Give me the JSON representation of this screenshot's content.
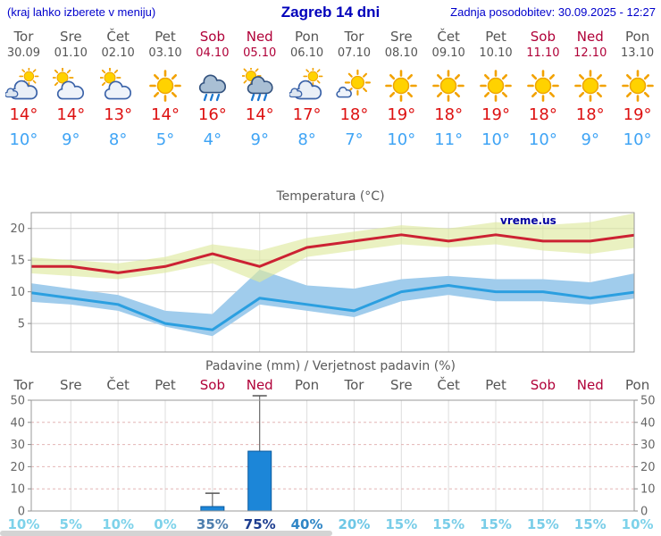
{
  "header": {
    "left_note": "(kraj lahko izberete v meniju)",
    "title": "Zagreb 14 dni",
    "updated": "Zadnja posodobitev: 30.09.2025 - 12:27"
  },
  "watermark": "vreme.us",
  "colors": {
    "header_text": "#0000cc",
    "tmax_text": "#dd1111",
    "tmin_text": "#3fa4f5",
    "weekend_text": "#b00038",
    "tmax_line": "#cc2233",
    "tmin_line": "#2b9fe0",
    "tmax_band": "#dfe9a0",
    "tmin_band": "#a0ccec",
    "precip_bar": "#1c86d8"
  },
  "days": [
    {
      "name": "Tor",
      "date": "30.09",
      "weekend": false,
      "icon": "cloudy",
      "tmax": 14,
      "tmin": 10,
      "prob": 10,
      "prob_color": "#7dd2ea"
    },
    {
      "name": "Sre",
      "date": "01.10",
      "weekend": false,
      "icon": "partly-sunny",
      "tmax": 14,
      "tmin": 9,
      "prob": 5,
      "prob_color": "#7dd2ea"
    },
    {
      "name": "Čet",
      "date": "02.10",
      "weekend": false,
      "icon": "partly-sunny",
      "tmax": 13,
      "tmin": 8,
      "prob": 10,
      "prob_color": "#7dd2ea"
    },
    {
      "name": "Pet",
      "date": "03.10",
      "weekend": false,
      "icon": "sun",
      "tmax": 14,
      "tmin": 5,
      "prob": 0,
      "prob_color": "#7dd2ea"
    },
    {
      "name": "Sob",
      "date": "04.10",
      "weekend": true,
      "icon": "rain",
      "tmax": 16,
      "tmin": 4,
      "prob": 35,
      "prob_color": "#4e7fae"
    },
    {
      "name": "Ned",
      "date": "05.10",
      "weekend": true,
      "icon": "sun-rain",
      "tmax": 14,
      "tmin": 9,
      "prob": 75,
      "prob_color": "#1d3d8f"
    },
    {
      "name": "Pon",
      "date": "06.10",
      "weekend": false,
      "icon": "cloudy",
      "tmax": 17,
      "tmin": 8,
      "prob": 40,
      "prob_color": "#2f86c6"
    },
    {
      "name": "Tor",
      "date": "07.10",
      "weekend": false,
      "icon": "mostly-sunny",
      "tmax": 18,
      "tmin": 7,
      "prob": 20,
      "prob_color": "#6ec7e6"
    },
    {
      "name": "Sre",
      "date": "08.10",
      "weekend": false,
      "icon": "sun",
      "tmax": 19,
      "tmin": 10,
      "prob": 15,
      "prob_color": "#79cde8"
    },
    {
      "name": "Čet",
      "date": "09.10",
      "weekend": false,
      "icon": "sun",
      "tmax": 18,
      "tmin": 11,
      "prob": 15,
      "prob_color": "#79cde8"
    },
    {
      "name": "Pet",
      "date": "10.10",
      "weekend": false,
      "icon": "sun",
      "tmax": 19,
      "tmin": 10,
      "prob": 15,
      "prob_color": "#79cde8"
    },
    {
      "name": "Sob",
      "date": "11.10",
      "weekend": true,
      "icon": "sun",
      "tmax": 18,
      "tmin": 10,
      "prob": 15,
      "prob_color": "#79cde8"
    },
    {
      "name": "Ned",
      "date": "12.10",
      "weekend": true,
      "icon": "sun",
      "tmax": 18,
      "tmin": 9,
      "prob": 15,
      "prob_color": "#79cde8"
    },
    {
      "name": "Pon",
      "date": "13.10",
      "weekend": false,
      "icon": "sun",
      "tmax": 19,
      "tmin": 10,
      "prob": 10,
      "prob_color": "#7dd2ea"
    }
  ],
  "chart_data": [
    {
      "type": "line",
      "title": "Temperatura (°C)",
      "categories": [
        "Tor",
        "Sre",
        "Čet",
        "Pet",
        "Sob",
        "Ned",
        "Pon",
        "Tor",
        "Sre",
        "Čet",
        "Pet",
        "Sob",
        "Ned",
        "Pon"
      ],
      "ylim": [
        0.5,
        22.5
      ],
      "yticks": [
        5,
        10,
        15,
        20
      ],
      "grid": true,
      "series": [
        {
          "name": "tmax",
          "color": "#cc2233",
          "values": [
            14,
            14,
            13,
            14,
            16,
            14,
            17,
            18,
            19,
            18,
            19,
            18,
            18,
            19
          ]
        },
        {
          "name": "tmax_range_high",
          "values": [
            15.5,
            15,
            14.5,
            15.5,
            17.5,
            16.5,
            18.5,
            19.5,
            20.5,
            20,
            21,
            20.5,
            21,
            22.5
          ]
        },
        {
          "name": "tmax_range_low",
          "values": [
            13,
            12.5,
            12,
            13,
            14.5,
            11.5,
            15.5,
            16.5,
            17.5,
            17,
            17.5,
            16.5,
            16,
            17
          ]
        },
        {
          "name": "tmin",
          "color": "#2b9fe0",
          "values": [
            10,
            9,
            8,
            5,
            4,
            9,
            8,
            7,
            10,
            11,
            10,
            10,
            9,
            10
          ]
        },
        {
          "name": "tmin_range_high",
          "values": [
            11.5,
            10.5,
            9.5,
            7,
            6.5,
            13.5,
            11,
            10.5,
            12,
            12.5,
            12,
            12,
            11.5,
            13
          ]
        },
        {
          "name": "tmin_range_low",
          "values": [
            8.5,
            8,
            7,
            4.5,
            3,
            8,
            7,
            6,
            8.5,
            9.5,
            8.5,
            8.5,
            8,
            9
          ]
        }
      ],
      "bands": [
        {
          "high": "tmin_range_high",
          "low": "tmin_range_low",
          "color": "#a0ccec",
          "opacity": 1
        },
        {
          "high": "tmax_range_high",
          "low": "tmax_range_low",
          "color": "#dfe9a0",
          "opacity": 0.65
        }
      ]
    },
    {
      "type": "bar",
      "title": "Padavine (mm) / Verjetnost padavin (%)",
      "categories": [
        "Tor",
        "Sre",
        "Čet",
        "Pet",
        "Sob",
        "Ned",
        "Pon",
        "Tor",
        "Sre",
        "Čet",
        "Pet",
        "Sob",
        "Ned",
        "Pon"
      ],
      "ylim": [
        0,
        50
      ],
      "yticks": [
        0,
        10,
        20,
        30,
        40,
        50
      ],
      "precip_mm": [
        0,
        0,
        0,
        0,
        2,
        27,
        0,
        0,
        0,
        0,
        0,
        0,
        0,
        0
      ],
      "precip_max_mm": [
        0,
        0,
        0,
        0,
        8,
        52,
        0,
        0,
        0,
        0,
        0,
        0,
        0,
        0
      ],
      "probability_pct": [
        10,
        5,
        10,
        0,
        35,
        75,
        40,
        20,
        15,
        15,
        15,
        15,
        15,
        10
      ],
      "bar_color": "#1c86d8"
    }
  ]
}
